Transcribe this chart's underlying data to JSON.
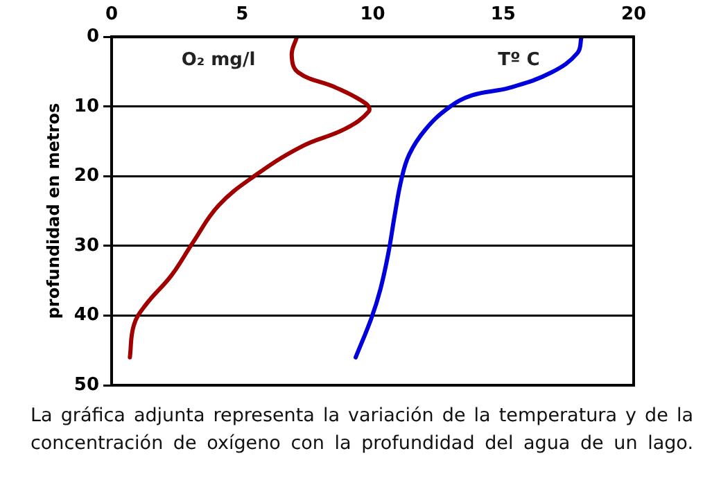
{
  "chart_data": {
    "type": "line",
    "ylabel": "profundidad en metros",
    "xlim": [
      0,
      20
    ],
    "xticks": [
      0,
      5,
      10,
      15,
      20
    ],
    "ylim": [
      50,
      0
    ],
    "yticks": [
      0,
      10,
      20,
      30,
      40,
      50
    ],
    "grid": "y",
    "legend": false,
    "marker": "none",
    "line_style": "solid",
    "series": [
      {
        "name": "O₂ mg/l",
        "color": "#a00000",
        "x": [
          7.1,
          6.9,
          7.15,
          8.6,
          9.75,
          9.85,
          8.95,
          7.3,
          5.5,
          4.1,
          3.1,
          2.3,
          1.3,
          0.85,
          0.7
        ],
        "values": [
          0,
          2.6,
          5.1,
          7.3,
          9.6,
          10.7,
          13.2,
          15.7,
          19.9,
          24.2,
          29.6,
          34.2,
          38.5,
          41.4,
          46
        ]
      },
      {
        "name": "Tº C",
        "color": "#0000dd",
        "x": [
          18.0,
          17.85,
          16.85,
          15.25,
          13.8,
          12.9,
          12.0,
          11.4,
          11.1,
          10.85,
          10.6,
          10.3,
          9.95,
          9.35
        ],
        "values": [
          0,
          2.3,
          5.1,
          7.3,
          8.4,
          10.2,
          13.4,
          16.9,
          20.5,
          25.5,
          31.1,
          36.2,
          40.4,
          46
        ]
      }
    ],
    "annotations": [
      "La gráfica adjunta representa la variación de la temperatura y de la concentración de oxígeno con la profundidad del agua de un lago."
    ]
  }
}
